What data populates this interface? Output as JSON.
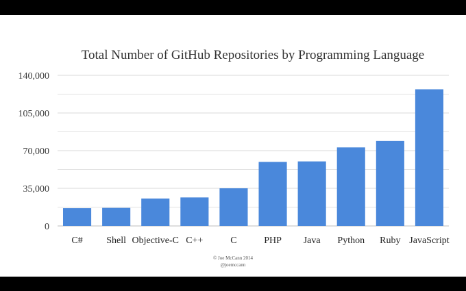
{
  "chart_data": {
    "type": "bar",
    "title": "Total Number of GitHub Repositories by Programming Language",
    "xlabel": "",
    "ylabel": "",
    "categories": [
      "C#",
      "Shell",
      "Objective-C",
      "C++",
      "C",
      "PHP",
      "Java",
      "Python",
      "Ruby",
      "JavaScript"
    ],
    "values": [
      16500,
      16800,
      25500,
      26500,
      35000,
      59500,
      60000,
      73000,
      79000,
      127000
    ],
    "ylim": [
      0,
      140000
    ],
    "yticks": [
      0,
      35000,
      70000,
      105000,
      140000
    ],
    "ytick_labels": [
      "0",
      "35,000",
      "70,000",
      "105,000",
      "140,000"
    ],
    "grid": true,
    "bar_color": "#4a88db",
    "grid_color": "#d9d9d9"
  },
  "credit": {
    "line1": "© Joe McCann 2014",
    "line2": "@joemccann"
  }
}
